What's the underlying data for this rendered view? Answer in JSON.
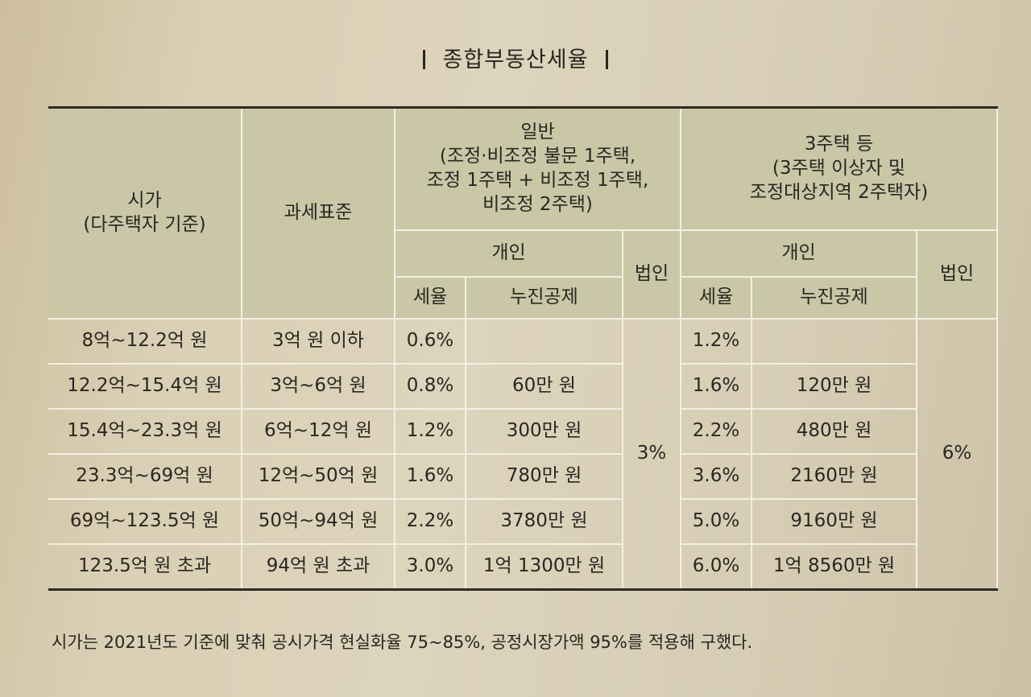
{
  "title": "종합부동산세율",
  "headers": {
    "market_price": "시가\n(다주택자 기준)",
    "tax_base": "과세표준",
    "general": "일반\n(조정·비조정 불문 1주택,\n조정 1주택 + 비조정 1주택,\n비조정 2주택)",
    "three_homes": "3주택 등\n(3주택 이상자 및\n조정대상지역 2주택자)",
    "individual_general": "개인",
    "corporate_general": "법인",
    "individual_three": "개인",
    "corporate_three": "법인",
    "rate_general": "세율",
    "deduction_general": "누진공제",
    "rate_three": "세율",
    "deduction_three": "누진공제"
  },
  "rows": [
    {
      "price": "8억~12.2억 원",
      "base": "3억 원 이하",
      "g_rate": "0.6%",
      "g_ded": "",
      "t_rate": "1.2%",
      "t_ded": ""
    },
    {
      "price": "12.2억~15.4억 원",
      "base": "3억~6억 원",
      "g_rate": "0.8%",
      "g_ded": "60만 원",
      "t_rate": "1.6%",
      "t_ded": "120만 원"
    },
    {
      "price": "15.4억~23.3억 원",
      "base": "6억~12억 원",
      "g_rate": "1.2%",
      "g_ded": "300만 원",
      "t_rate": "2.2%",
      "t_ded": "480만 원"
    },
    {
      "price": "23.3억~69억 원",
      "base": "12억~50억 원",
      "g_rate": "1.6%",
      "g_ded": "780만 원",
      "t_rate": "3.6%",
      "t_ded": "2160만 원"
    },
    {
      "price": "69억~123.5억 원",
      "base": "50억~94억 원",
      "g_rate": "2.2%",
      "g_ded": "3780만 원",
      "t_rate": "5.0%",
      "t_ded": "9160만 원"
    },
    {
      "price": "123.5억 원 초과",
      "base": "94억 원 초과",
      "g_rate": "3.0%",
      "g_ded": "1억 1300만 원",
      "t_rate": "6.0%",
      "t_ded": "1억 8560만 원"
    }
  ],
  "corporate_general_rate": "3%",
  "corporate_three_rate": "6%",
  "note": "시가는 2021년도 기준에 맞춰 공시가격 현실화율 75~85%, 공정시장가액 95%를 적용해 구했다."
}
